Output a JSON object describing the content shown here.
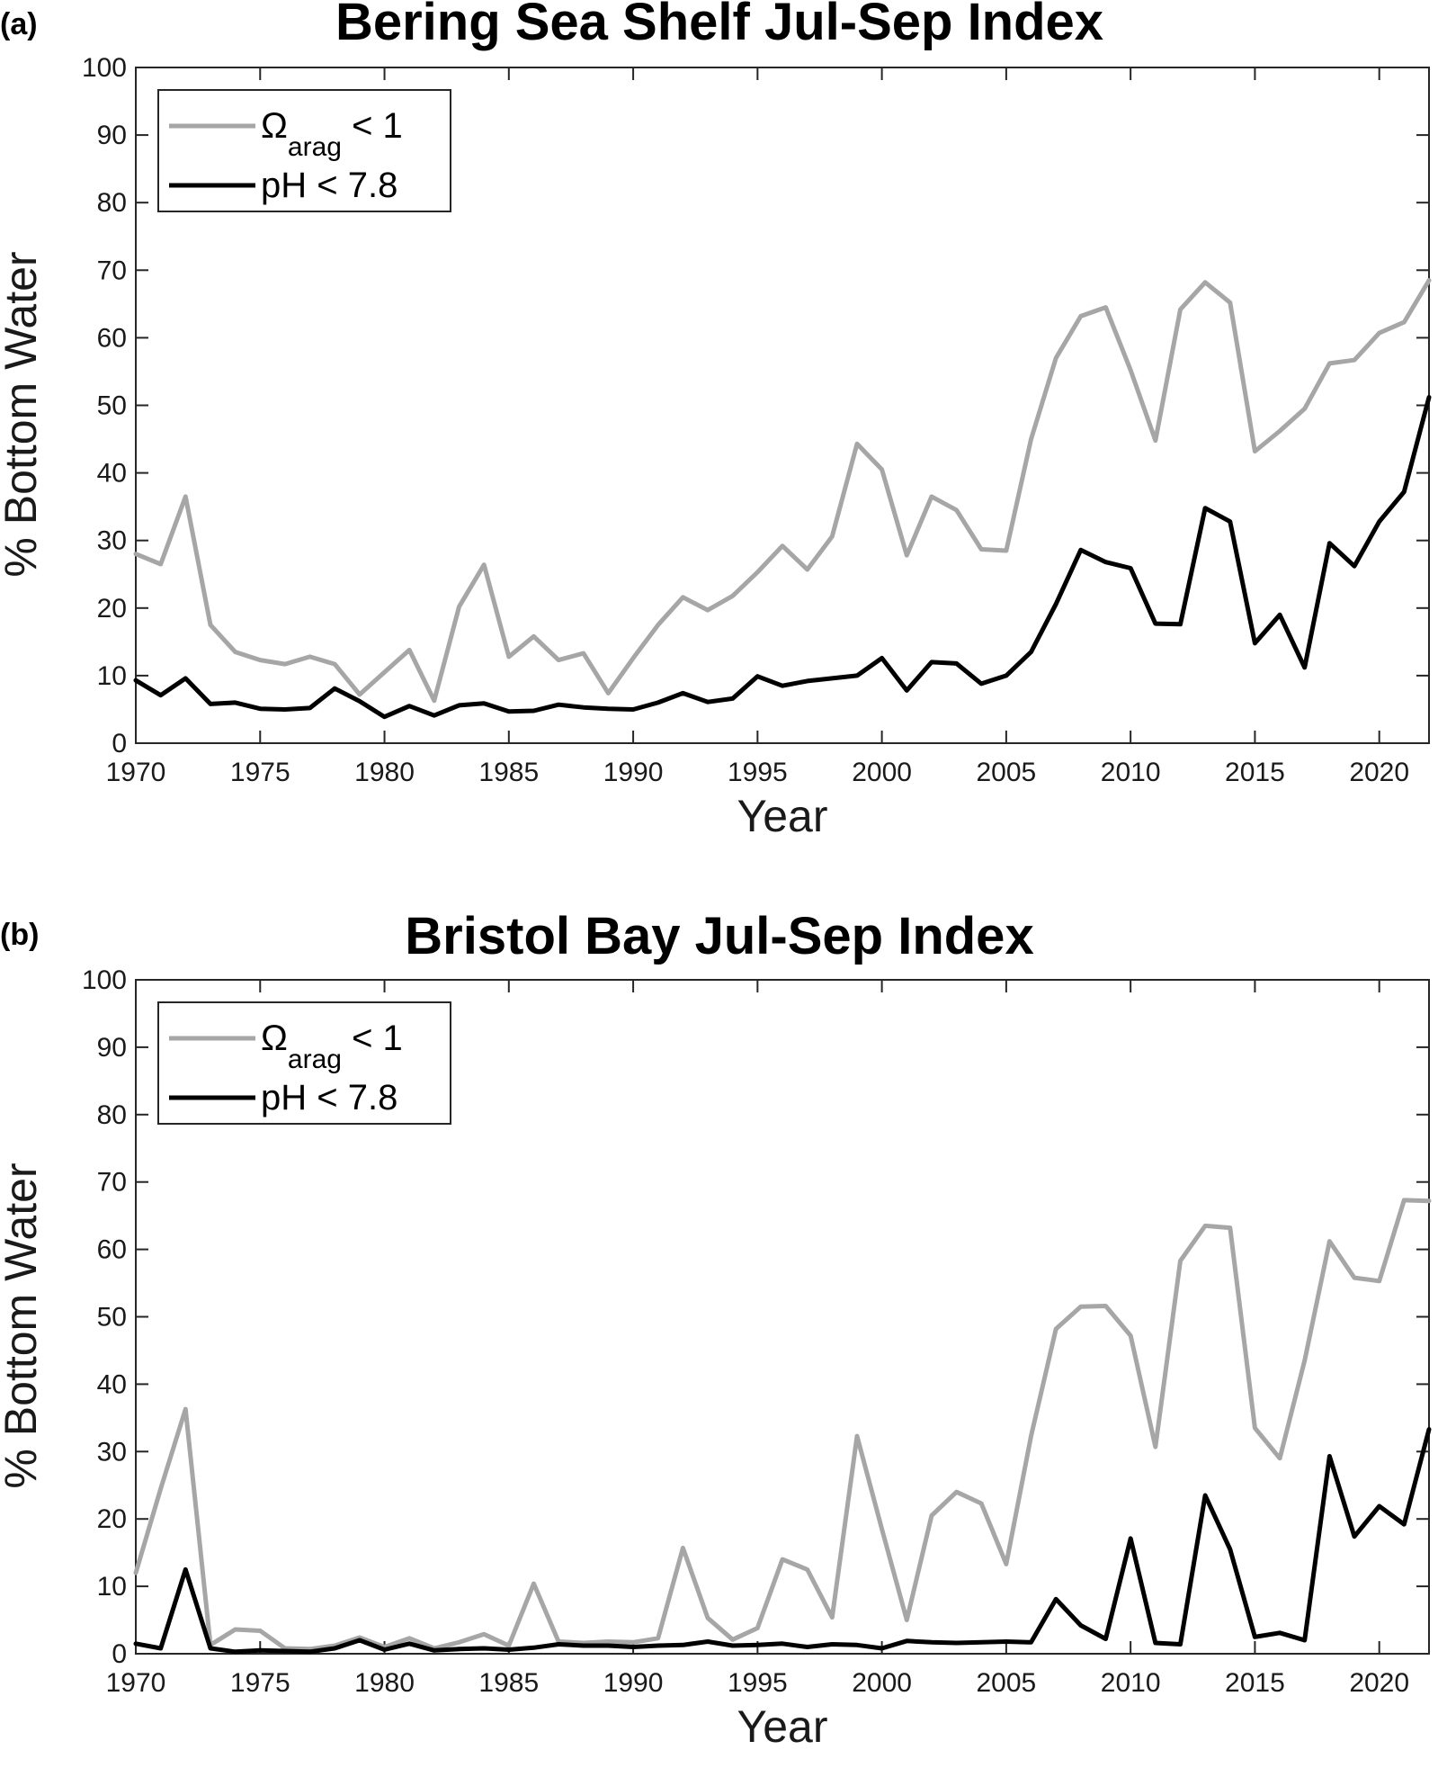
{
  "chart_data": [
    {
      "type": "line",
      "panel_label": "(a)",
      "title": "Bering Sea Shelf Jul-Sep Index",
      "xlabel": "Year",
      "ylabel": "% Bottom Water",
      "xlim": [
        1970,
        2022
      ],
      "ylim": [
        0,
        100
      ],
      "xticks": [
        "1970",
        "1975",
        "1980",
        "1985",
        "1990",
        "1995",
        "2000",
        "2005",
        "2010",
        "2015",
        "2020"
      ],
      "yticks": [
        "0",
        "10",
        "20",
        "30",
        "40",
        "50",
        "60",
        "70",
        "80",
        "90",
        "100"
      ],
      "grid": false,
      "legend_placement": "top-left",
      "x": [
        1970,
        1971,
        1972,
        1973,
        1974,
        1975,
        1976,
        1977,
        1978,
        1979,
        1980,
        1981,
        1982,
        1983,
        1984,
        1985,
        1986,
        1987,
        1988,
        1989,
        1990,
        1991,
        1992,
        1993,
        1994,
        1995,
        1996,
        1997,
        1998,
        1999,
        2000,
        2001,
        2002,
        2003,
        2004,
        2005,
        2006,
        2007,
        2008,
        2009,
        2010,
        2011,
        2012,
        2013,
        2014,
        2015,
        2016,
        2017,
        2018,
        2019,
        2020,
        2021,
        2022
      ],
      "series": [
        {
          "name": "Ω",
          "name_sub": "arag",
          "name_tail": " < 1",
          "color": "#a6a6a6",
          "values": [
            28,
            26.5,
            36.5,
            17.5,
            13.5,
            12.3,
            11.7,
            12.8,
            11.7,
            7.2,
            10.5,
            13.8,
            6.3,
            20.2,
            26.4,
            12.8,
            15.8,
            12.3,
            13.3,
            7.4,
            12.6,
            17.5,
            21.6,
            19.7,
            21.8,
            25.3,
            29.2,
            25.7,
            30.6,
            44.3,
            40.5,
            27.8,
            36.5,
            34.5,
            28.7,
            28.5,
            45,
            57,
            63.2,
            64.5,
            55.2,
            44.8,
            64.2,
            68.2,
            65.2,
            43.2,
            46.2,
            49.5,
            56.2,
            56.7,
            60.7,
            62.3,
            68.5
          ]
        },
        {
          "name": "pH < 7.8",
          "color": "#000000",
          "values": [
            9.3,
            7.1,
            9.6,
            5.8,
            6,
            5.1,
            5,
            5.2,
            8.1,
            6.2,
            3.9,
            5.5,
            4.1,
            5.6,
            5.9,
            4.7,
            4.8,
            5.7,
            5.3,
            5.1,
            5,
            6,
            7.4,
            6.1,
            6.6,
            9.9,
            8.5,
            9.2,
            9.6,
            10,
            12.6,
            7.8,
            12,
            11.8,
            8.8,
            10,
            13.5,
            20.6,
            28.6,
            26.8,
            25.9,
            17.7,
            17.6,
            34.8,
            32.8,
            14.8,
            19,
            11.2,
            29.6,
            26.2,
            32.8,
            37.2,
            51.2
          ]
        }
      ]
    },
    {
      "type": "line",
      "panel_label": "(b)",
      "title": "Bristol Bay Jul-Sep Index",
      "xlabel": "Year",
      "ylabel": "% Bottom Water",
      "xlim": [
        1970,
        2022
      ],
      "ylim": [
        0,
        100
      ],
      "xticks": [
        "1970",
        "1975",
        "1980",
        "1985",
        "1990",
        "1995",
        "2000",
        "2005",
        "2010",
        "2015",
        "2020"
      ],
      "yticks": [
        "0",
        "10",
        "20",
        "30",
        "40",
        "50",
        "60",
        "70",
        "80",
        "90",
        "100"
      ],
      "grid": false,
      "legend_placement": "top-left",
      "x": [
        1970,
        1971,
        1972,
        1973,
        1974,
        1975,
        1976,
        1977,
        1978,
        1979,
        1980,
        1981,
        1982,
        1983,
        1984,
        1985,
        1986,
        1987,
        1988,
        1989,
        1990,
        1991,
        1992,
        1993,
        1994,
        1995,
        1996,
        1997,
        1998,
        1999,
        2000,
        2001,
        2002,
        2003,
        2004,
        2005,
        2006,
        2007,
        2008,
        2009,
        2010,
        2011,
        2012,
        2013,
        2014,
        2015,
        2016,
        2017,
        2018,
        2019,
        2020,
        2021,
        2022
      ],
      "series": [
        {
          "name": "Ω",
          "name_sub": "arag",
          "name_tail": " < 1",
          "color": "#a6a6a6",
          "values": [
            12,
            24.5,
            36.3,
            1.3,
            3.6,
            3.4,
            0.8,
            0.7,
            1.2,
            2.4,
            1,
            2.3,
            0.8,
            1.7,
            2.9,
            1.2,
            10.4,
            1.8,
            1.6,
            1.8,
            1.7,
            2.3,
            15.7,
            5.3,
            2.1,
            3.8,
            14,
            12.5,
            5.4,
            32.3,
            18.5,
            5,
            20.5,
            24,
            22.3,
            13.3,
            32.3,
            48.2,
            51.5,
            51.6,
            47.2,
            30.7,
            58.3,
            63.5,
            63.2,
            33.5,
            29,
            43.5,
            61.2,
            55.8,
            55.3,
            67.3,
            67.2
          ]
        },
        {
          "name": "pH < 7.8",
          "color": "#000000",
          "values": [
            1.5,
            0.8,
            12.5,
            0.8,
            0.3,
            0.5,
            0.4,
            0.3,
            0.8,
            2,
            0.6,
            1.5,
            0.5,
            0.7,
            0.8,
            0.6,
            0.9,
            1.4,
            1.2,
            1.2,
            1,
            1.2,
            1.3,
            1.8,
            1.2,
            1.3,
            1.5,
            1,
            1.4,
            1.3,
            0.8,
            1.9,
            1.7,
            1.6,
            1.7,
            1.8,
            1.7,
            8.1,
            4.2,
            2.2,
            17.1,
            1.6,
            1.4,
            23.5,
            15.5,
            2.5,
            3.1,
            2,
            29.3,
            17.4,
            21.9,
            19.2,
            33.3
          ]
        }
      ]
    }
  ]
}
